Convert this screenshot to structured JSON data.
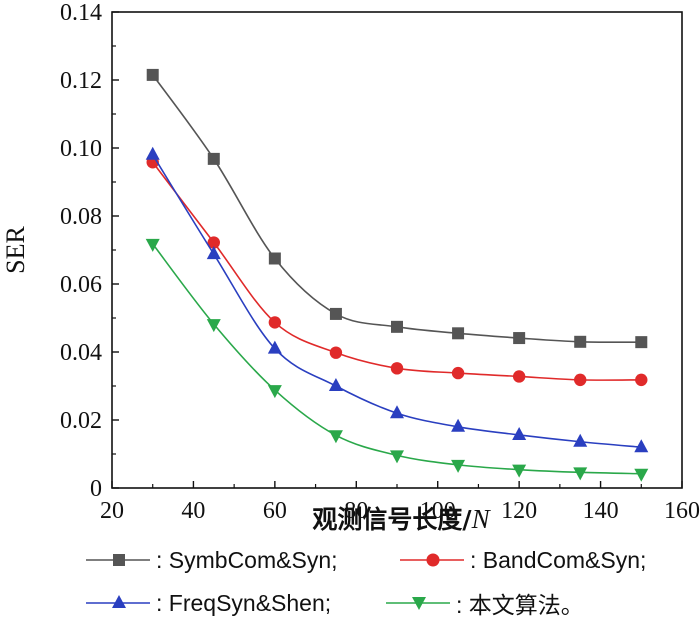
{
  "chart_data": {
    "type": "line",
    "ylabel": "SER",
    "xlabel": "观测信号长度/",
    "xlabel_var": "N",
    "xlim": [
      20,
      160
    ],
    "ylim": [
      0,
      0.14
    ],
    "xticks": [
      "20",
      "40",
      "60",
      "80",
      "100",
      "120",
      "140",
      "160"
    ],
    "yticks": [
      "0",
      "0.02",
      "0.04",
      "0.06",
      "0.08",
      "0.10",
      "0.12",
      "0.14"
    ],
    "x": [
      30,
      45,
      60,
      75,
      90,
      105,
      120,
      135,
      150
    ],
    "series": [
      {
        "name": "SymbCom&Syn;",
        "legend_label": ": SymbCom&Syn;",
        "color": "#555555",
        "marker": "square",
        "values": [
          0.1215,
          0.0968,
          0.0675,
          0.0512,
          0.0474,
          0.0455,
          0.0441,
          0.043,
          0.0429
        ]
      },
      {
        "name": "BandCom&Syn;",
        "legend_label": ": BandCom&Syn;",
        "color": "#e02a2a",
        "marker": "circle",
        "values": [
          0.0958,
          0.0722,
          0.0487,
          0.0398,
          0.0352,
          0.0338,
          0.0328,
          0.0318,
          0.0318
        ]
      },
      {
        "name": "FreqSyn&Shen;",
        "legend_label": ": FreqSyn&Shen;",
        "color": "#2a3fc0",
        "marker": "triangle-up",
        "values": [
          0.098,
          0.0688,
          0.041,
          0.03,
          0.022,
          0.018,
          0.0156,
          0.0136,
          0.012
        ]
      },
      {
        "name": "本文算法。",
        "legend_label": ": 本文算法。",
        "color": "#2aa84a",
        "marker": "triangle-down",
        "values": [
          0.0718,
          0.0482,
          0.0288,
          0.0155,
          0.0096,
          0.0068,
          0.0054,
          0.0046,
          0.0042
        ]
      }
    ],
    "grid": false,
    "legend_position": "bottom"
  }
}
